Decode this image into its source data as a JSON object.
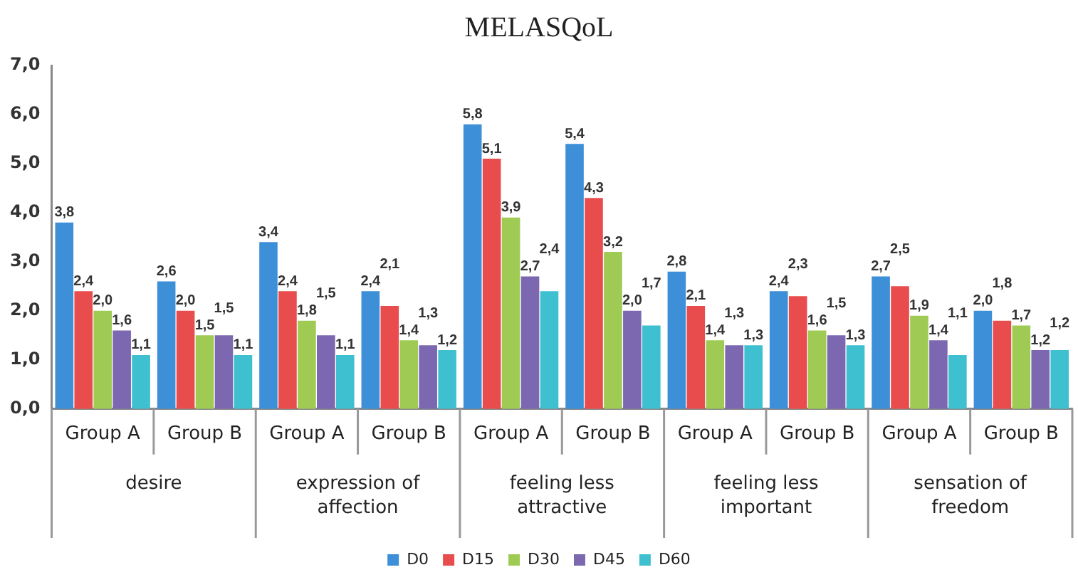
{
  "chart_data": {
    "type": "bar",
    "title": "MELASQoL",
    "categories": [
      "Group A",
      "Group B",
      "Group A",
      "Group B",
      "Group A",
      "Group B",
      "Group A",
      "Group B",
      "Group A",
      "Group B"
    ],
    "annotations": [
      "desire",
      "expression of affection",
      "feeling less attractive",
      "feeling less important",
      "sensation of freedom"
    ],
    "series": [
      {
        "name": "D0",
        "color": "#3d8fd8",
        "values": [
          3.8,
          2.6,
          3.4,
          2.4,
          5.8,
          5.4,
          2.8,
          2.4,
          2.7,
          2.0
        ],
        "value_labels": [
          "3,8",
          "2,6",
          "3,4",
          "2,4",
          "5,8",
          "5,4",
          "2,8",
          "2,4",
          "2,7",
          "2,0"
        ]
      },
      {
        "name": "D15",
        "color": "#e84c4c",
        "values": [
          2.4,
          2.0,
          2.4,
          2.1,
          5.1,
          4.3,
          2.1,
          2.3,
          2.5,
          1.8
        ],
        "value_labels": [
          "2,4",
          "2,0",
          "2,4",
          "2,1",
          "5,1",
          "4,3",
          "2,1",
          "2,3",
          "2,5",
          "1,8"
        ]
      },
      {
        "name": "D30",
        "color": "#9fcb55",
        "values": [
          2.0,
          1.5,
          1.8,
          1.4,
          3.9,
          3.2,
          1.4,
          1.6,
          1.9,
          1.7
        ],
        "value_labels": [
          "2,0",
          "1,5",
          "1,8",
          "1,4",
          "3,9",
          "3,2",
          "1,4",
          "1,6",
          "1,9",
          "1,7"
        ]
      },
      {
        "name": "D45",
        "color": "#7b68b0",
        "values": [
          1.6,
          1.5,
          1.5,
          1.3,
          2.7,
          2.0,
          1.3,
          1.5,
          1.4,
          1.2
        ],
        "value_labels": [
          "1,6",
          "1,5",
          "1,5",
          "1,3",
          "2,7",
          "2,0",
          "1,3",
          "1,5",
          "1,4",
          "1,2"
        ]
      },
      {
        "name": "D60",
        "color": "#3fc0d0",
        "values": [
          1.1,
          1.1,
          1.1,
          1.2,
          2.4,
          1.7,
          1.3,
          1.3,
          1.1,
          1.2
        ],
        "value_labels": [
          "1,1",
          "1,1",
          "1,1",
          "1,2",
          "2,4",
          "1,7",
          "1,3",
          "1,3",
          "1,1",
          "1,2"
        ]
      }
    ],
    "ylim": [
      0,
      7
    ],
    "yticks": [
      {
        "value": 0,
        "label": "0,0"
      },
      {
        "value": 1,
        "label": "1,0"
      },
      {
        "value": 2,
        "label": "2,0"
      },
      {
        "value": 3,
        "label": "3,0"
      },
      {
        "value": 4,
        "label": "4,0"
      },
      {
        "value": 5,
        "label": "5,0"
      },
      {
        "value": 6,
        "label": "6,0"
      },
      {
        "value": 7,
        "label": "7,0"
      }
    ],
    "grid": false,
    "legend": "bottom"
  }
}
